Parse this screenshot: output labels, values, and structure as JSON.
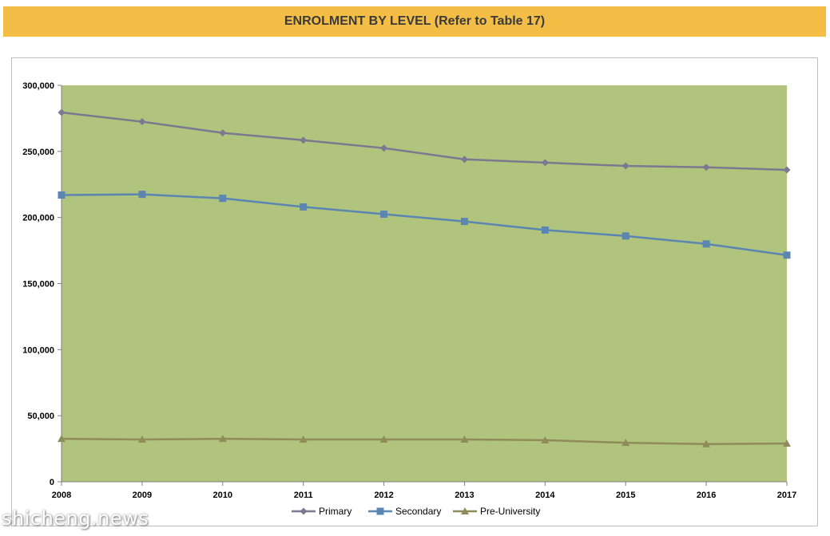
{
  "header": {
    "title": "ENROLMENT BY LEVEL (Refer to Table 17)"
  },
  "watermark": "shicheng.news",
  "colors": {
    "plot_background": "#b0c47e",
    "banner": "#f3bd46",
    "primary": "#7b7890",
    "secondary": "#5b86b2",
    "pre_university": "#8f8b5a"
  },
  "chart_data": {
    "type": "line",
    "title": "ENROLMENT BY LEVEL (Refer to Table 17)",
    "xlabel": "",
    "ylabel": "",
    "categories": [
      "2008",
      "2009",
      "2010",
      "2011",
      "2012",
      "2013",
      "2014",
      "2015",
      "2016",
      "2017"
    ],
    "ylim": [
      0,
      300000
    ],
    "yticks": [
      0,
      50000,
      100000,
      150000,
      200000,
      250000,
      300000
    ],
    "ytick_labels": [
      "0",
      "50,000",
      "100,000",
      "150,000",
      "200,000",
      "250,000",
      "300,000"
    ],
    "grid": false,
    "legend_position": "bottom",
    "series": [
      {
        "name": "Primary",
        "marker": "diamond",
        "color": "#7b7890",
        "values": [
          279500,
          272500,
          264000,
          258500,
          252500,
          244000,
          241500,
          239000,
          238000,
          236000
        ]
      },
      {
        "name": "Secondary",
        "marker": "square",
        "color": "#5b86b2",
        "values": [
          217000,
          217500,
          214500,
          208000,
          202500,
          197000,
          190500,
          186000,
          180000,
          171500
        ]
      },
      {
        "name": "Pre-University",
        "marker": "triangle",
        "color": "#8f8b5a",
        "values": [
          32500,
          32000,
          32500,
          32000,
          32000,
          32000,
          31500,
          29500,
          28500,
          29000
        ]
      }
    ]
  }
}
